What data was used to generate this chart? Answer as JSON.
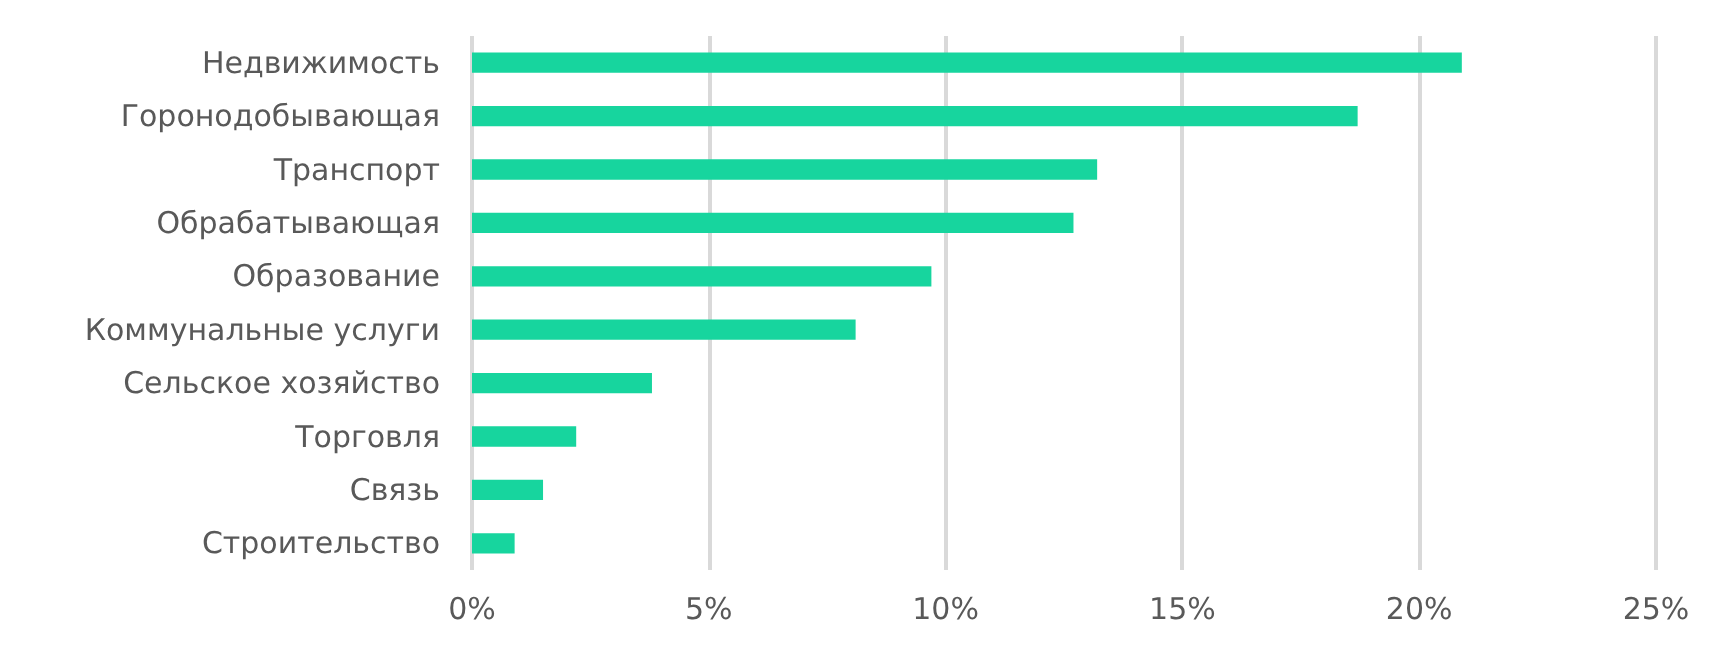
{
  "chart_data": {
    "type": "bar",
    "orientation": "horizontal",
    "categories": [
      "Недвижимость",
      "Горонодобывающая",
      "Транспорт",
      "Обрабатывающая",
      "Образование",
      "Коммунальные услуги",
      "Сельское хозяйство",
      "Торговля",
      "Связь",
      "Строительство"
    ],
    "values": [
      20.9,
      18.7,
      13.2,
      12.7,
      9.7,
      8.1,
      3.8,
      2.2,
      1.5,
      0.9
    ],
    "color": "#17d59e",
    "xlim": [
      0,
      25
    ],
    "xticks": [
      {
        "value": 0,
        "label": "0%"
      },
      {
        "value": 5,
        "label": "5%"
      },
      {
        "value": 10,
        "label": "10%"
      },
      {
        "value": 15,
        "label": "15%"
      },
      {
        "value": 20,
        "label": "20%"
      },
      {
        "value": 25,
        "label": "25%"
      }
    ],
    "grid": "x"
  }
}
